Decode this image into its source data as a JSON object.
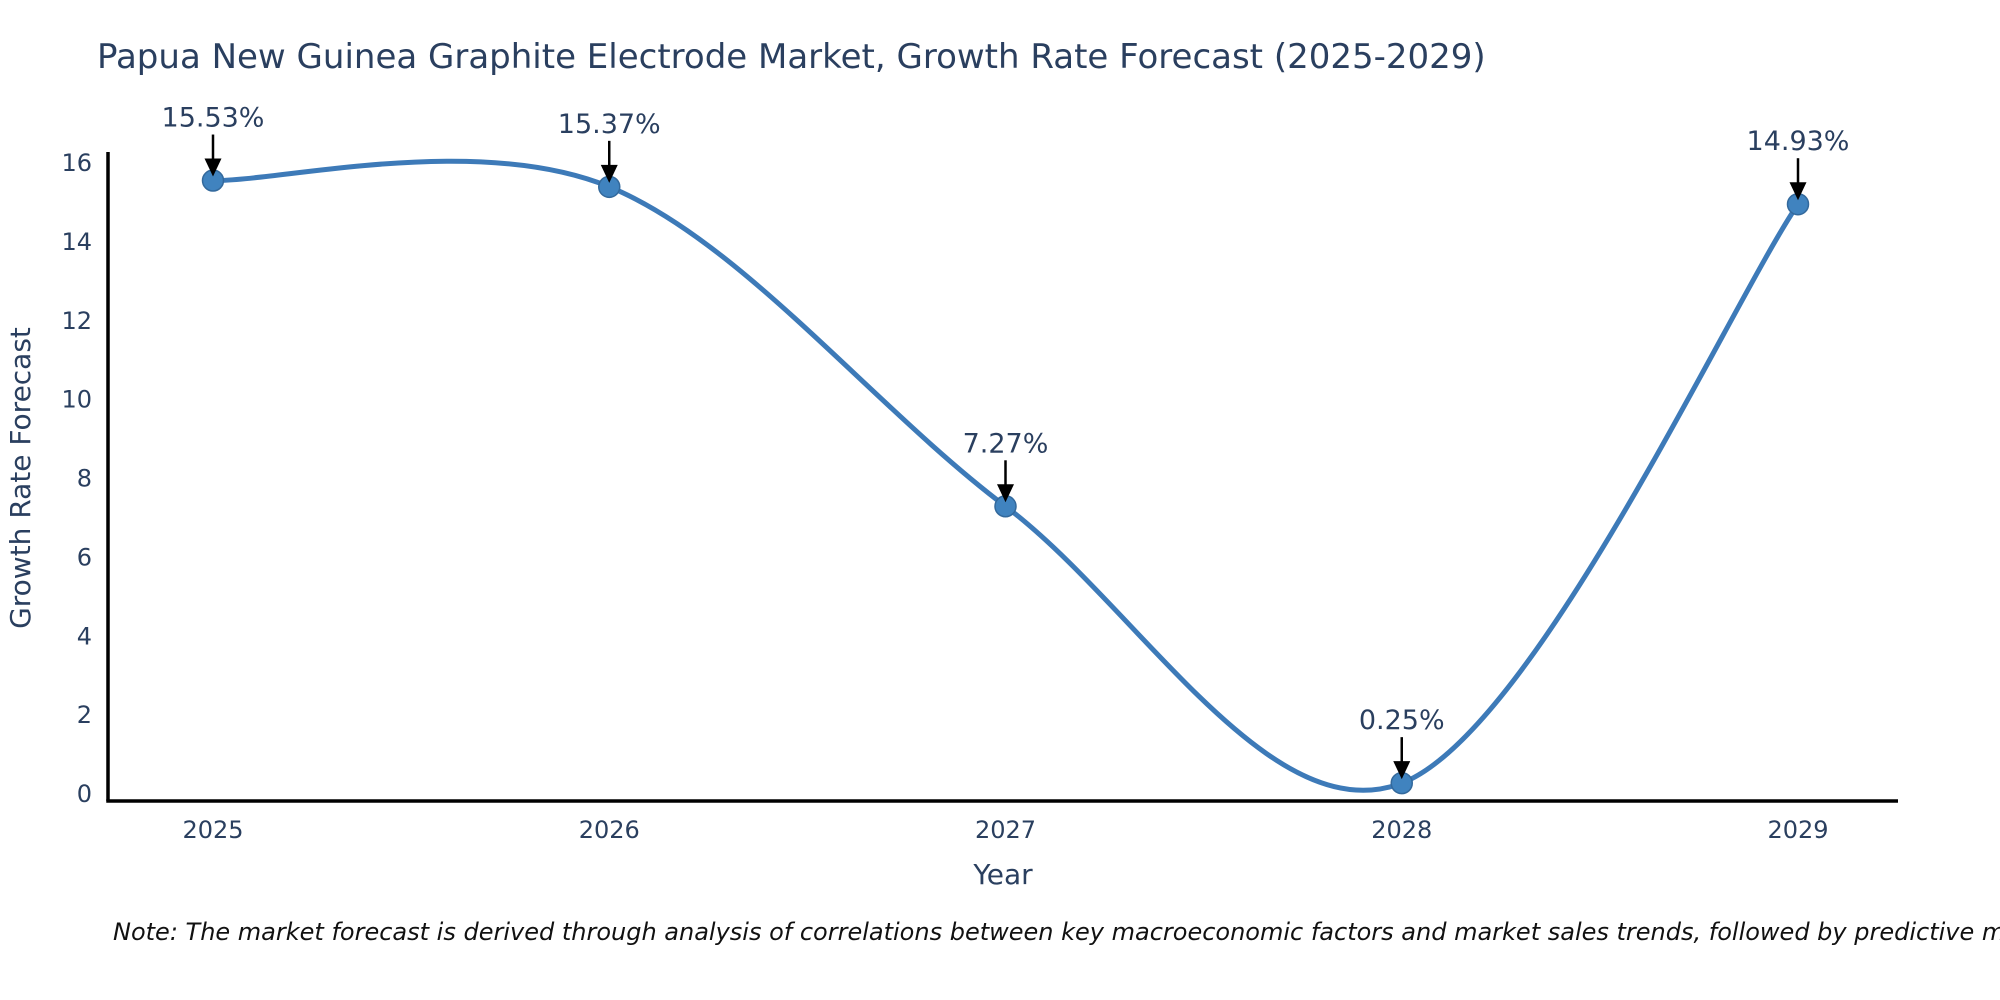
{
  "chart_data": {
    "type": "line",
    "title": "Papua New Guinea Graphite Electrode Market, Growth Rate Forecast (2025-2029)",
    "xlabel": "Year",
    "ylabel": "Growth Rate Forecast",
    "x": [
      2025,
      2026,
      2027,
      2028,
      2029
    ],
    "values": [
      15.53,
      15.37,
      7.27,
      0.25,
      14.93
    ],
    "point_labels": [
      "15.53%",
      "15.37%",
      "7.27%",
      "0.25%",
      "14.93%"
    ],
    "xlim": [
      2025,
      2029
    ],
    "ylim": [
      0,
      16
    ],
    "yticks": [
      0,
      2,
      4,
      6,
      8,
      10,
      12,
      14,
      16
    ],
    "xticks": [
      "2025",
      "2026",
      "2027",
      "2028",
      "2029"
    ],
    "grid": false,
    "legend_position": "none",
    "line_shape": "spline",
    "annotation_style": "label-with-down-arrow",
    "colors": {
      "line": "#3d7ab8",
      "marker": "#4083bf",
      "marker_edge": "#33699c",
      "chart_text": "#2a3f5f",
      "axis_line": "#000000",
      "arrow": "#000000",
      "note_text": "#111111",
      "background": "#ffffff"
    }
  },
  "note": "Note: The market forecast is derived through analysis of correlations between key macroeconomic factors and market sales trends, followed by predictive modeling to project future sales"
}
